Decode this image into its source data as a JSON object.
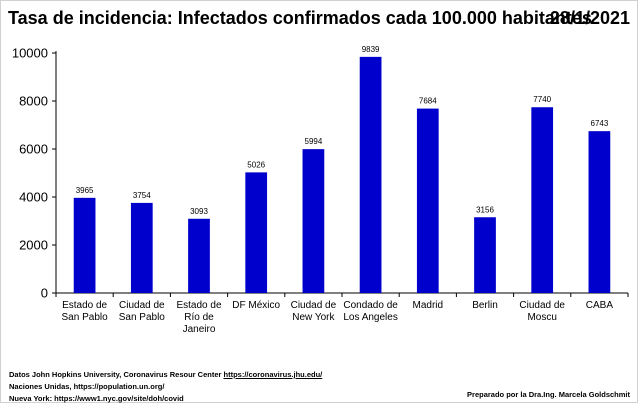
{
  "title": "Tasa de incidencia: Infectados confirmados cada 100.000 habitantes",
  "date": "28/1/2021",
  "colors": {
    "bar": "#0000CC",
    "axis": "#000000",
    "text": "#000000"
  },
  "chart_data": {
    "type": "bar",
    "title": "Tasa de incidencia: Infectados confirmados cada 100.000 habitantes",
    "categories": [
      [
        "Estado de",
        "San Pablo"
      ],
      [
        "Ciudad de",
        "San Pablo"
      ],
      [
        "Estado de",
        "Río de",
        "Janeiro"
      ],
      [
        "DF México"
      ],
      [
        "Ciudad de",
        "New York"
      ],
      [
        "Condado de",
        "Los Angeles"
      ],
      [
        "Madrid"
      ],
      [
        "Berlin"
      ],
      [
        "Ciudad de",
        "Moscu"
      ],
      [
        "CABA"
      ]
    ],
    "values": [
      3965,
      3754,
      3093,
      5026,
      5994,
      9839,
      7684,
      3156,
      7740,
      6743
    ],
    "yticks": [
      0,
      2000,
      4000,
      6000,
      8000,
      10000
    ],
    "ylim": [
      0,
      10000
    ],
    "xlabel": "",
    "ylabel": "",
    "grid": false,
    "legend": "none"
  },
  "footer": {
    "line1_prefix": "Datos  John Hopkins University, Coronavirus Resour Center ",
    "line1_link": "https://coronavirus.jhu.edu/",
    "line2": "Naciones Unidas, https://population.un.org/",
    "line3": "Nueva York: https://www1.nyc.gov/site/doh/covid",
    "credit": "Preparado por la Dra.Ing. Marcela Goldschmit"
  }
}
